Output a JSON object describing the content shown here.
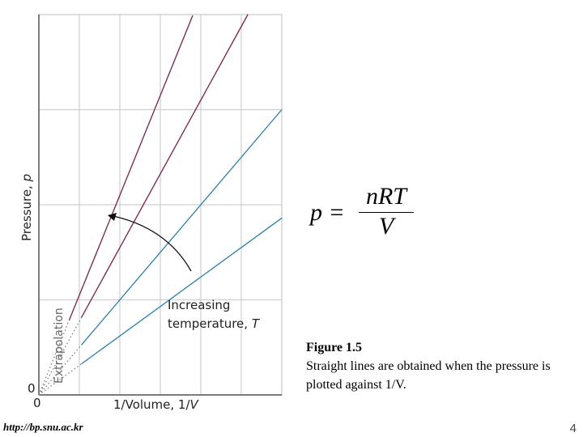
{
  "chart_data": {
    "type": "line",
    "title": "",
    "xlabel": "1/Volume, 1/V",
    "ylabel": "Pressure, p",
    "origin_x_label": "0",
    "origin_y_label": "0",
    "xlim": [
      0,
      6
    ],
    "ylim": [
      0,
      8
    ],
    "grid": true,
    "annotation": "Increasing temperature, T",
    "extrapolation_label": "Extrapolation",
    "series": [
      {
        "slope": 2.1,
        "color": "#7a1f4a",
        "x_start": 0.75,
        "x_end": 3.8
      },
      {
        "slope": 1.55,
        "color": "#7a1f4a",
        "x_start": 1.05,
        "x_end": 5.2
      },
      {
        "slope": 1.0,
        "color": "#2a7fb0",
        "x_start": 1.05,
        "x_end": 6.0
      },
      {
        "slope": 0.62,
        "color": "#2a7fb0",
        "x_start": 1.05,
        "x_end": 6.0
      }
    ]
  },
  "formula": {
    "lhs": "p =",
    "numerator": "nRT",
    "denominator": "V"
  },
  "caption": {
    "title": "Figure 1.5",
    "body": "Straight lines are obtained when the pressure is plotted against 1/V."
  },
  "footer": {
    "url": "http://bp.snu.ac.kr",
    "page": "4"
  }
}
